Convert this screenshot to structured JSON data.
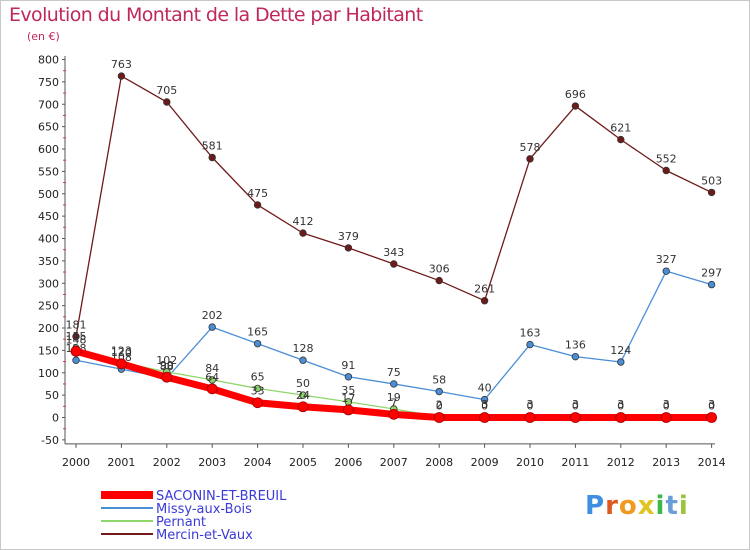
{
  "chart_data": {
    "type": "line",
    "title": "Evolution du Montant de la Dette par Habitant",
    "subtitle": "(en €)",
    "x": [
      "2000",
      "2001",
      "2002",
      "2003",
      "2004",
      "2005",
      "2006",
      "2007",
      "2008",
      "2009",
      "2010",
      "2011",
      "2012",
      "2013",
      "2014"
    ],
    "ylim": [
      -50,
      800
    ],
    "yticks": [
      -50,
      0,
      50,
      100,
      150,
      200,
      250,
      300,
      350,
      400,
      450,
      500,
      550,
      600,
      650,
      700,
      750,
      800
    ],
    "grid": false,
    "legend_position": "bottom-left",
    "series": [
      {
        "name": "SACONIN-ET-BREUIL",
        "color": "#ff0000",
        "values": [
          148,
          120,
          90,
          64,
          33,
          24,
          17,
          7,
          0,
          0,
          0,
          0,
          0,
          0,
          0
        ],
        "labels": [
          "148",
          "120",
          "90",
          "64",
          "33",
          "24",
          "17",
          "7",
          "0",
          "0",
          "0",
          "0",
          "0",
          "0",
          "0"
        ]
      },
      {
        "name": "Missy-aux-Bois",
        "color": "#4a8ed6",
        "values": [
          128,
          108,
          88,
          202,
          165,
          128,
          91,
          75,
          58,
          40,
          163,
          136,
          124,
          327,
          297
        ],
        "labels": [
          "128",
          "108",
          "88",
          "202",
          "165",
          "128",
          "91",
          "75",
          "58",
          "40",
          "163",
          "136",
          "124",
          "327",
          "297"
        ]
      },
      {
        "name": "Pernant",
        "color": "#8ed66a",
        "values": [
          155,
          123,
          102,
          84,
          65,
          50,
          35,
          19,
          2,
          3,
          3,
          3,
          3,
          3,
          3
        ],
        "labels": [
          "155",
          "123",
          "102",
          "84",
          "65",
          "50",
          "35",
          "19",
          "2",
          "3",
          "3",
          "3",
          "3",
          "3",
          "3"
        ]
      },
      {
        "name": "Mercin-et-Vaux",
        "color": "#6e1a1a",
        "values": [
          181,
          763,
          705,
          581,
          475,
          412,
          379,
          343,
          306,
          261,
          578,
          696,
          621,
          552,
          503
        ],
        "labels": [
          "181",
          "763",
          "705",
          "581",
          "475",
          "412",
          "379",
          "343",
          "306",
          "261",
          "578",
          "696",
          "621",
          "552",
          "503"
        ]
      }
    ]
  },
  "logo": {
    "letters": [
      "P",
      "r",
      "o",
      "x",
      "i",
      "t",
      "i"
    ],
    "colors": [
      "#3f8fe0",
      "#e05a1f",
      "#f29a1f",
      "#e0c41f",
      "#3fb84a",
      "#6b9ed9",
      "#9bc43a"
    ]
  }
}
